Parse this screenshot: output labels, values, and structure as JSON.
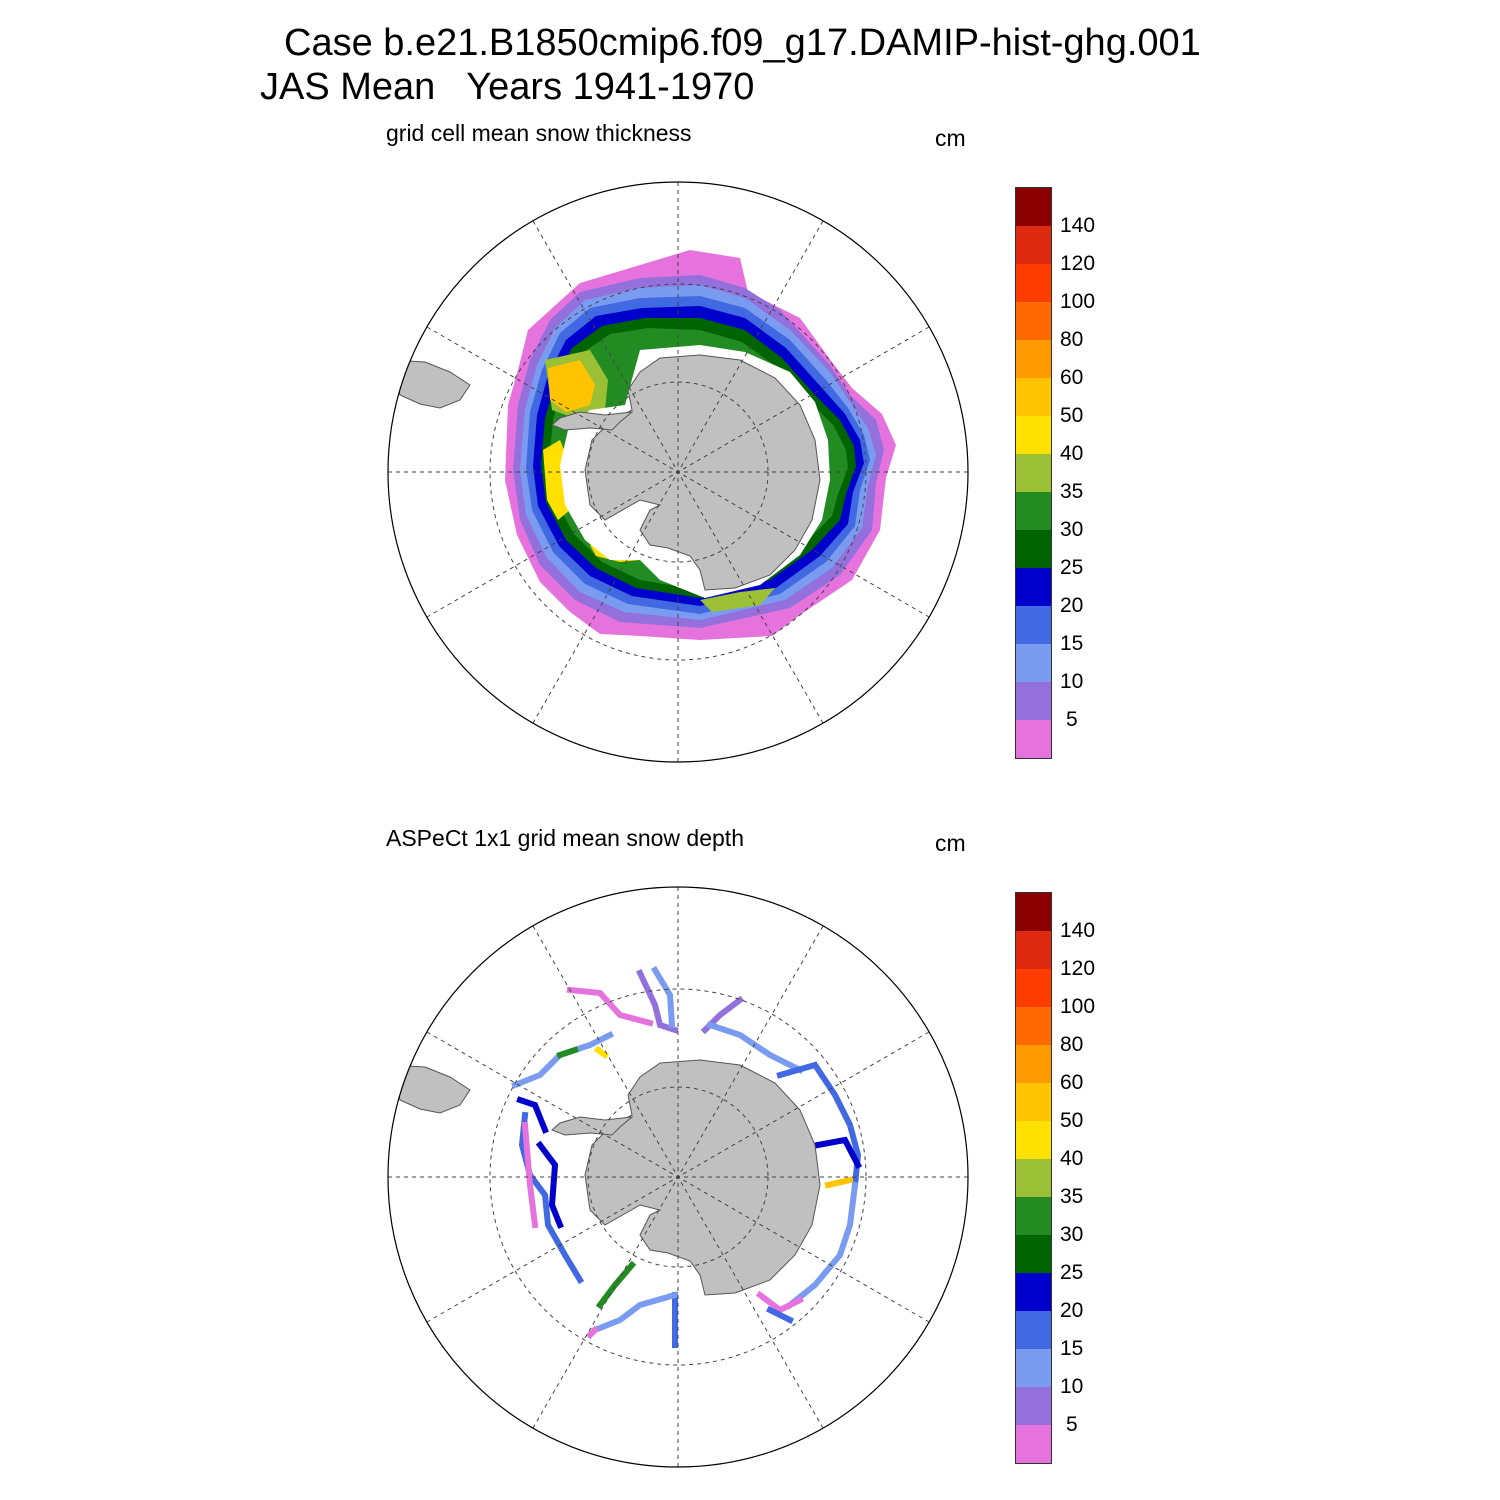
{
  "title": {
    "line1": "Case b.e21.B1850cmip6.f09_g17.DAMIP-hist-ghg.001",
    "line2": "JAS Mean   Years 1941-1970"
  },
  "panels": [
    {
      "subtitle": "grid cell mean snow thickness",
      "unit": "cm",
      "type": "model-field"
    },
    {
      "subtitle": "ASPeCt 1x1 grid mean snow depth",
      "unit": "cm",
      "type": "observations"
    }
  ],
  "colorbar": {
    "labels": [
      "140",
      "120",
      "100",
      "80",
      "60",
      "50",
      "40",
      "35",
      "30",
      "25",
      "20",
      "15",
      "10",
      "5"
    ],
    "colors_top_to_bottom": [
      "#8b0000",
      "#dd2a10",
      "#ff3c00",
      "#ff6a00",
      "#ff9a00",
      "#ffc300",
      "#ffe000",
      "#9bc035",
      "#228b22",
      "#006400",
      "#0000cd",
      "#4169e1",
      "#7a9cf0",
      "#9370db",
      "#e672de"
    ]
  },
  "map_colors": {
    "land": "#c0c0c0",
    "ocean": "#ffffff",
    "ice_edge": "#e672de"
  }
}
